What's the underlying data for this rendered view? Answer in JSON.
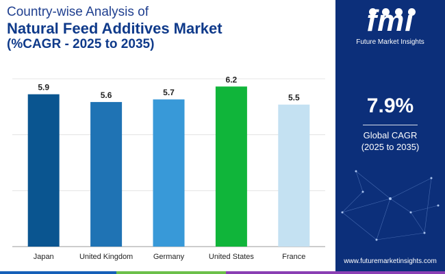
{
  "header": {
    "line1": "Country-wise Analysis of",
    "line2": "Natural Feed Additives Market",
    "line3": "(%CAGR - 2025 to 2035)"
  },
  "chart_data": {
    "type": "bar",
    "categories": [
      "Japan",
      "United Kingdom",
      "Germany",
      "United States",
      "France"
    ],
    "values": [
      5.9,
      5.6,
      5.7,
      6.2,
      5.5
    ],
    "value_labels": [
      "5.9",
      "5.6",
      "5.7",
      "6.2",
      "5.5"
    ],
    "bar_colors": [
      "#0a5590",
      "#1f73b4",
      "#3899d8",
      "#10b53a",
      "#c4e1f2"
    ],
    "ylim": [
      0,
      6.5
    ],
    "grid": true,
    "legend": "none"
  },
  "side_panel": {
    "logo_text": "fmi",
    "logo_subtitle": "Future Market Insights",
    "cagr_value": "7.9%",
    "cagr_label": "Global CAGR",
    "cagr_period": "(2025 to 2035)",
    "website": "www.futuremarketinsights.com"
  },
  "colors": {
    "panel_bg": "#0c2f7a",
    "title": "#0f3a8a",
    "footer": [
      "#1560b8",
      "#6cc04a",
      "#8a3fb4"
    ]
  }
}
